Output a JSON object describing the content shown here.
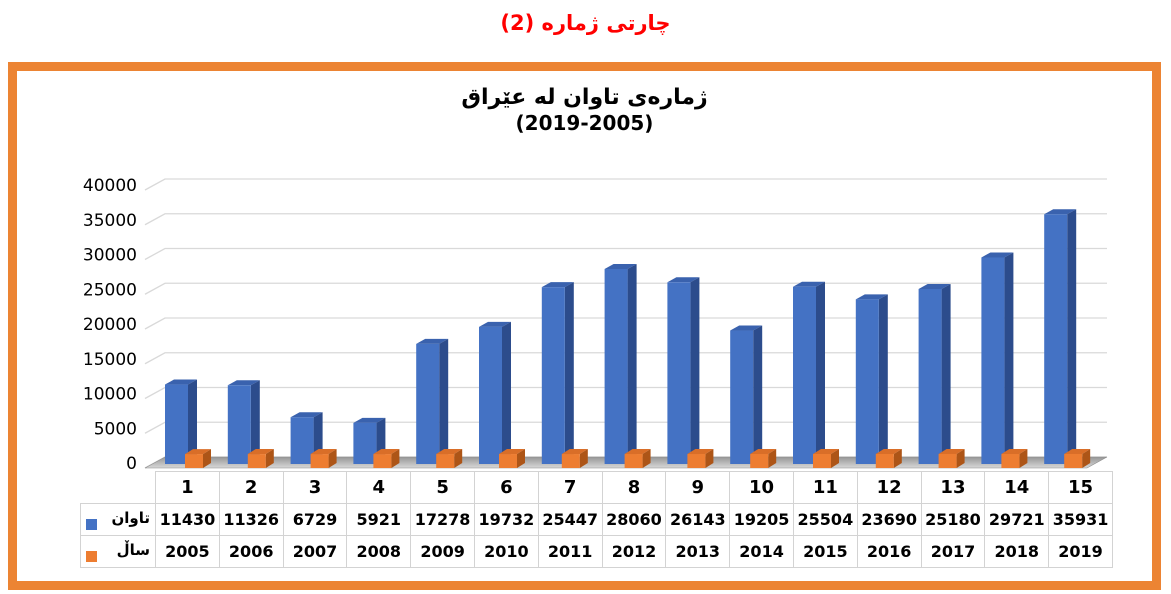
{
  "page_title": "چارتی ژمارە (2)",
  "colors": {
    "title_red": "#FF0000",
    "frame_orange": "#EC8433",
    "gridline": "#D9D9D9",
    "floor_dark": "#969696",
    "floor_light": "#D8D8D8",
    "table_border": "#D3D3D3",
    "bar_blue_front": "#4472C4",
    "bar_blue_top": "#3A62AE",
    "bar_blue_side": "#2C4C8C",
    "bar_orange_front": "#ED7D31",
    "bar_orange_top": "#D96E28",
    "bar_orange_side": "#AD5517"
  },
  "chart_data": {
    "type": "bar",
    "variant": "3d-column",
    "title_line1": "ژمارەی تاوان لە عێراق",
    "title_line2": "(2019-2005)",
    "categories": [
      "1",
      "2",
      "3",
      "4",
      "5",
      "6",
      "7",
      "8",
      "9",
      "10",
      "11",
      "12",
      "13",
      "14",
      "15"
    ],
    "series": [
      {
        "name": "تاوان",
        "color": "#4472C4",
        "values": [
          11430,
          11326,
          6729,
          5921,
          17278,
          19732,
          25447,
          28060,
          26143,
          19205,
          25504,
          23690,
          25180,
          29721,
          35931
        ]
      },
      {
        "name": "ساڵ",
        "color": "#ED7D31",
        "values": [
          2005,
          2006,
          2007,
          2008,
          2009,
          2010,
          2011,
          2012,
          2013,
          2014,
          2015,
          2016,
          2017,
          2018,
          2019
        ]
      }
    ],
    "ylim": [
      0,
      40000
    ],
    "ytick_step": 5000,
    "yticks": [
      "0",
      "5000",
      "10000",
      "15000",
      "20000",
      "25000",
      "30000",
      "35000",
      "40000"
    ],
    "grid": true,
    "legend_position": "table-left"
  }
}
